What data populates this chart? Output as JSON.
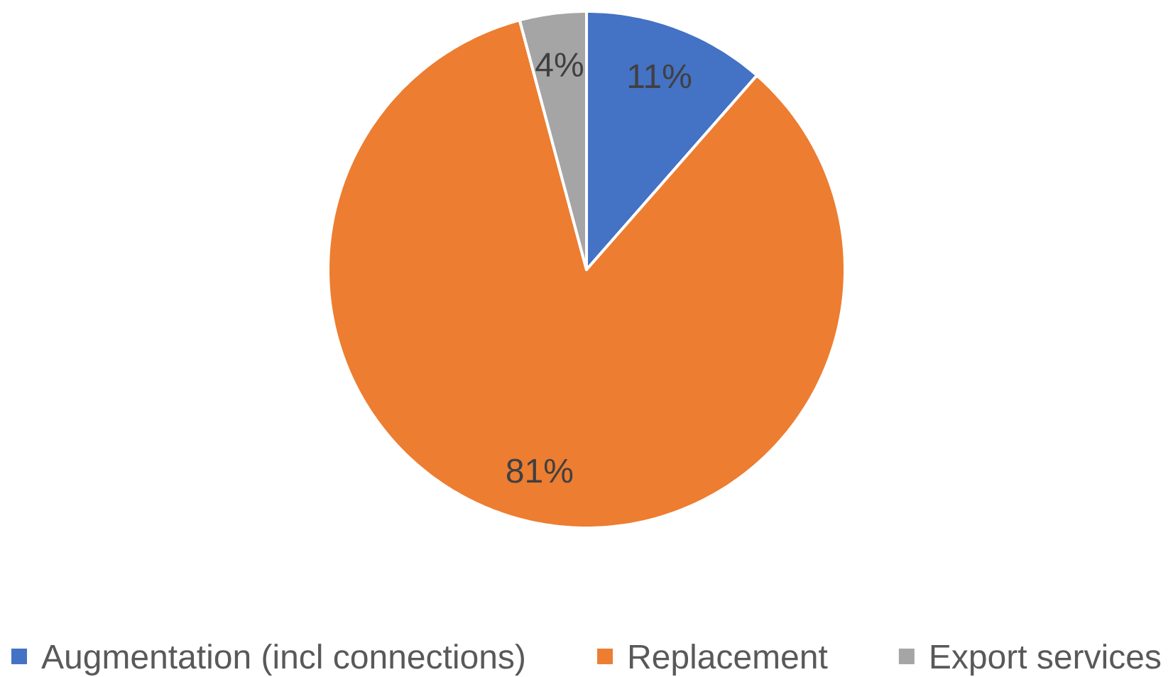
{
  "chart_data": {
    "type": "pie",
    "categories": [
      "Augmentation (incl connections)",
      "Replacement",
      "Export services"
    ],
    "values": [
      11,
      81,
      4
    ],
    "colors": [
      "#4472c4",
      "#ed7d31",
      "#a5a5a5"
    ],
    "value_labels": [
      "11%",
      "81%",
      "4%"
    ],
    "legend": "bottom"
  }
}
